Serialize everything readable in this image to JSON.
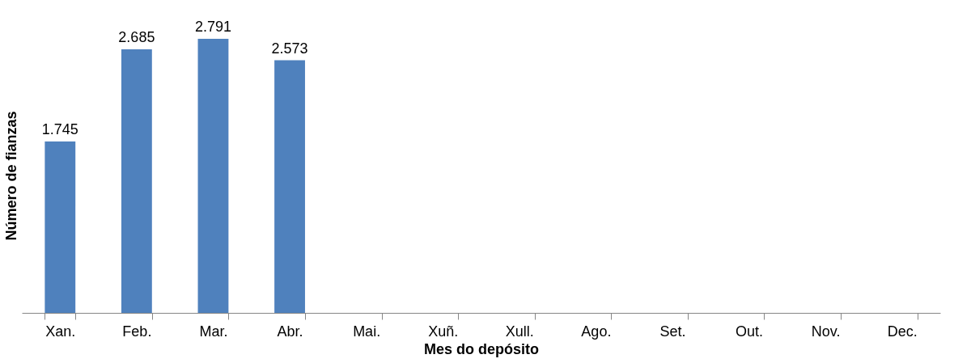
{
  "chart_data": {
    "type": "bar",
    "xlabel": "Mes do depósito",
    "ylabel": "Número de fianzas",
    "categories": [
      "Xan.",
      "Feb.",
      "Mar.",
      "Abr.",
      "Mai.",
      "Xuñ.",
      "Xull.",
      "Ago.",
      "Set.",
      "Out.",
      "Nov.",
      "Dec."
    ],
    "values": [
      1745,
      2685,
      2791,
      2573,
      null,
      null,
      null,
      null,
      null,
      null,
      null,
      null
    ],
    "value_labels": [
      "1.745",
      "2.685",
      "2.791",
      "2.573",
      null,
      null,
      null,
      null,
      null,
      null,
      null,
      null
    ],
    "color": "#4f81bd"
  }
}
